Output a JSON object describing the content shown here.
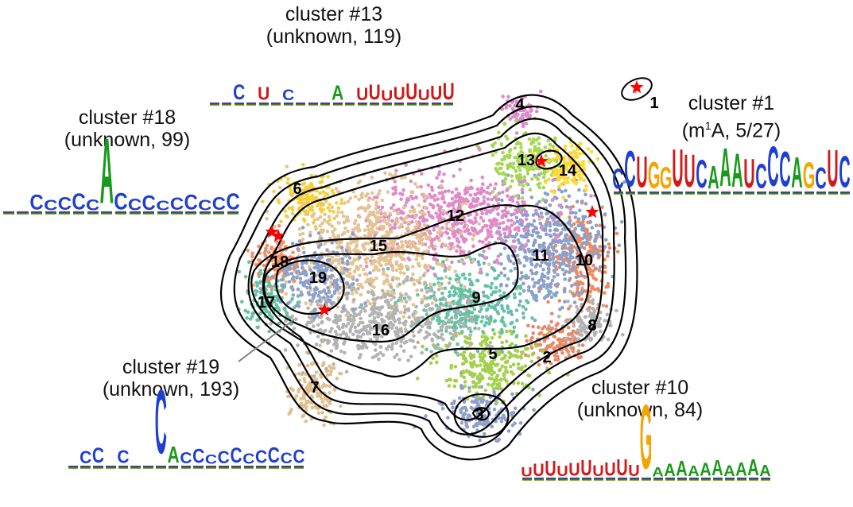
{
  "colors": {
    "c1": "#e98966",
    "c2": "#e98966",
    "c3": "#8fa0cc",
    "c4": "#dc8ccc",
    "c5": "#a5d04e",
    "c6": "#f6d03b",
    "c7": "#e2bf8f",
    "c8": "#b3b3b3",
    "c9": "#66c2a5",
    "c10": "#f08a5e",
    "c11": "#8da0cb",
    "c12": "#e08bc8",
    "c13": "#a6d854",
    "c14": "#ffd92f",
    "c15": "#e5c494",
    "c16": "#b3b3b3",
    "c17": "#66c2a5",
    "c18": "#fc8d62",
    "c19": "#8da0cb",
    "star": "#ff0000",
    "contour": "#000000",
    "base_A": "#1a9a1a",
    "base_C": "#1f3fd0",
    "base_G": "#f5a400",
    "base_U": "#d21919"
  },
  "cluster_numbers": [
    "1",
    "2",
    "3",
    "4",
    "5",
    "6",
    "7",
    "8",
    "9",
    "10",
    "11",
    "12",
    "13",
    "14",
    "15",
    "16",
    "17",
    "18",
    "19"
  ],
  "annotations": {
    "c13": {
      "line1": "cluster #13",
      "line2": "(unknown, 119)"
    },
    "c18": {
      "line1": "cluster #18",
      "line2": "(unknown, 99)"
    },
    "c1": {
      "line1": "cluster #1",
      "line2_pre": "(m",
      "line2_sup": "1",
      "line2_post": "A, 5/27)"
    },
    "c19": {
      "line1": "cluster #19",
      "line2": "(unknown, 193)"
    },
    "c10": {
      "line1": "cluster #10",
      "line2": "(unknown, 84)"
    }
  },
  "logos": {
    "c13": "--C-U-C---A-UUUUUUUU",
    "c18": "--CCCCCACCCCCCCCC",
    "c1": "CCUGGUUCAAAUCCCAGCUC",
    "c19": "-CC-C--CACCCCCCCCCC",
    "c10": "UUUUUUUUUUGAAAAAAAAAA"
  }
}
